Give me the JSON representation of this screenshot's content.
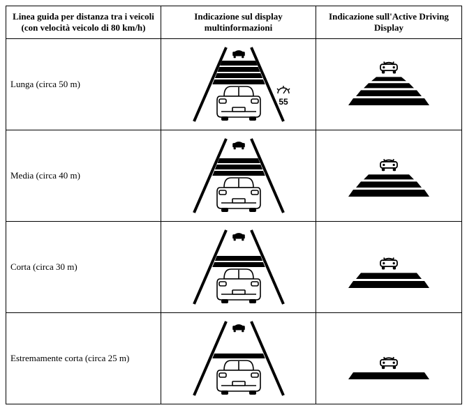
{
  "table": {
    "headers": {
      "col1": "Linea guida per distanza tra i veicoli (con velocità veicolo di 80 km/h)",
      "col2": "Indicazione sul display multinformazioni",
      "col3": "Indicazione sull'Active Driving Display"
    },
    "rows": [
      {
        "label": "Lunga (circa 50 m)",
        "mid_bars": 4,
        "adv_bars": 4,
        "show_speed": true,
        "speed_value": "55"
      },
      {
        "label": "Media (circa 40 m)",
        "mid_bars": 3,
        "adv_bars": 3,
        "show_speed": false,
        "speed_value": ""
      },
      {
        "label": "Corta (circa 30 m)",
        "mid_bars": 2,
        "adv_bars": 2,
        "show_speed": false,
        "speed_value": ""
      },
      {
        "label": "Estremamente corta (circa 25 m)",
        "mid_bars": 1,
        "adv_bars": 1,
        "show_speed": false,
        "speed_value": ""
      }
    ],
    "diagram_style": {
      "lane_color": "#000000",
      "car_outline_color": "#000000",
      "bar_color": "#000000",
      "background": "#ffffff",
      "own_car_fill": "#ffffff",
      "lead_car_fill": "#000000",
      "speed_icon_color": "#000000"
    }
  }
}
